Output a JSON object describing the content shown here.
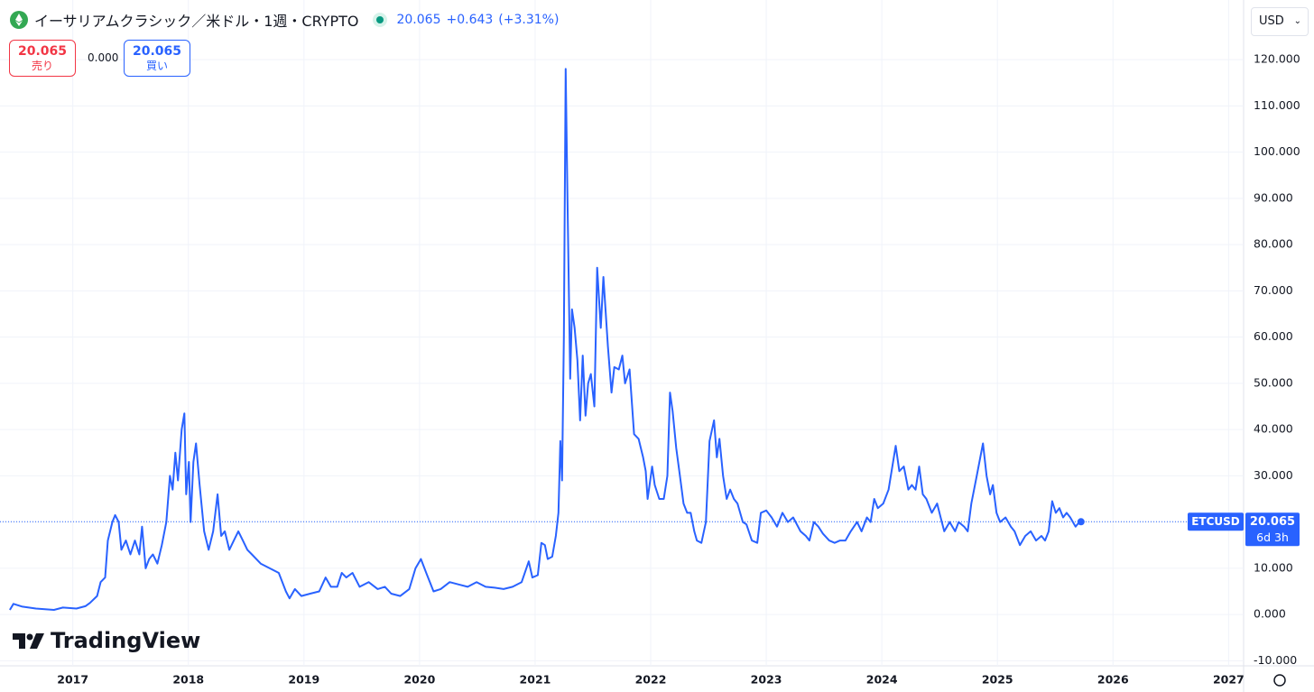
{
  "header": {
    "title": "イーサリアムクラシック／米ドル・1週・CRYPTO",
    "price": "20.065",
    "change": "+0.643",
    "change_pct": "(+3.31%)",
    "sell": {
      "price": "20.065",
      "label": "売り"
    },
    "spread": "0.000",
    "buy": {
      "price": "20.065",
      "label": "買い"
    },
    "currency": "USD",
    "brand": "TradingView"
  },
  "chart_data": {
    "type": "line",
    "grid": true,
    "x": [
      2016.455,
      2016.486,
      2016.564,
      2016.681,
      2016.837,
      2016.914,
      2017.031,
      2017.109,
      2017.148,
      2017.21,
      2017.241,
      2017.28,
      2017.303,
      2017.342,
      2017.366,
      2017.397,
      2017.42,
      2017.459,
      2017.498,
      2017.537,
      2017.576,
      2017.599,
      2017.63,
      2017.661,
      2017.693,
      2017.732,
      2017.77,
      2017.809,
      2017.84,
      2017.864,
      2017.887,
      2017.91,
      2017.942,
      2017.965,
      2017.981,
      2018.004,
      2018.019,
      2018.043,
      2018.066,
      2018.097,
      2018.136,
      2018.175,
      2018.214,
      2018.253,
      2018.284,
      2018.315,
      2018.354,
      2018.393,
      2018.432,
      2018.471,
      2018.51,
      2018.549,
      2018.626,
      2018.704,
      2018.782,
      2018.844,
      2018.875,
      2018.922,
      2018.977,
      2019.054,
      2019.132,
      2019.187,
      2019.233,
      2019.288,
      2019.327,
      2019.366,
      2019.42,
      2019.482,
      2019.56,
      2019.638,
      2019.7,
      2019.755,
      2019.833,
      2019.911,
      2019.965,
      2020.012,
      2020.058,
      2020.121,
      2020.183,
      2020.261,
      2020.338,
      2020.416,
      2020.494,
      2020.572,
      2020.65,
      2020.727,
      2020.805,
      2020.883,
      2020.945,
      2020.976,
      2021.023,
      2021.054,
      2021.085,
      2021.109,
      2021.148,
      2021.179,
      2021.202,
      2021.218,
      2021.233,
      2021.249,
      2021.264,
      2021.28,
      2021.303,
      2021.319,
      2021.342,
      2021.366,
      2021.389,
      2021.412,
      2021.436,
      2021.459,
      2021.482,
      2021.513,
      2021.537,
      2021.568,
      2021.591,
      2021.63,
      2021.661,
      2021.685,
      2021.724,
      2021.755,
      2021.778,
      2021.817,
      2021.856,
      2021.895,
      2021.934,
      2021.957,
      2021.973,
      2022.012,
      2022.035,
      2022.074,
      2022.113,
      2022.144,
      2022.167,
      2022.19,
      2022.221,
      2022.253,
      2022.284,
      2022.315,
      2022.346,
      2022.377,
      2022.4,
      2022.439,
      2022.478,
      2022.509,
      2022.548,
      2022.572,
      2022.595,
      2022.626,
      2022.657,
      2022.688,
      2022.72,
      2022.751,
      2022.797,
      2022.828,
      2022.875,
      2022.922,
      2022.953,
      2023.0,
      2023.046,
      2023.093,
      2023.14,
      2023.187,
      2023.233,
      2023.296,
      2023.342,
      2023.373,
      2023.412,
      2023.451,
      2023.49,
      2023.544,
      2023.591,
      2023.638,
      2023.685,
      2023.731,
      2023.786,
      2023.825,
      2023.871,
      2023.903,
      2023.934,
      2023.965,
      2024.012,
      2024.058,
      2024.097,
      2024.12,
      2024.151,
      2024.19,
      2024.229,
      2024.26,
      2024.292,
      2024.323,
      2024.354,
      2024.385,
      2024.432,
      2024.478,
      2024.509,
      2024.54,
      2024.587,
      2024.634,
      2024.665,
      2024.712,
      2024.743,
      2024.774,
      2024.821,
      2024.875,
      2024.906,
      2024.937,
      2024.961,
      2024.992,
      2025.023,
      2025.07,
      2025.116,
      2025.148,
      2025.194,
      2025.241,
      2025.288,
      2025.334,
      2025.381,
      2025.412,
      2025.443,
      2025.474,
      2025.505,
      2025.536,
      2025.568,
      2025.599,
      2025.63,
      2025.676,
      2025.708,
      2025.723
    ],
    "series": [
      {
        "name": "ETCUSD",
        "color": "#2962ff",
        "values": [
          1,
          2.3,
          1.7,
          1.3,
          1.0,
          1.5,
          1.3,
          1.8,
          2.5,
          4,
          7,
          8,
          16,
          20,
          21.5,
          20,
          14,
          16,
          13,
          16,
          13,
          19,
          10,
          12,
          13,
          11,
          15,
          20,
          30,
          27,
          35,
          29,
          40,
          43.5,
          26,
          33,
          20,
          33,
          37,
          28,
          18,
          14,
          18,
          26,
          17,
          18,
          14,
          16,
          18,
          16,
          14,
          13,
          11,
          10,
          9,
          5,
          3.5,
          5.5,
          4,
          4.5,
          5,
          8,
          6,
          6,
          9,
          8,
          9,
          6,
          7,
          5.5,
          6,
          4.5,
          4,
          5.5,
          10,
          12,
          9,
          5,
          5.5,
          7,
          6.5,
          6,
          7,
          6,
          5.8,
          5.5,
          6,
          7,
          11.5,
          8,
          8.5,
          15.5,
          15,
          12,
          12.5,
          17,
          22,
          37.5,
          29,
          60,
          118,
          90,
          51,
          66,
          62,
          55,
          42,
          56,
          43,
          50,
          52,
          45,
          75,
          62,
          73,
          58,
          48,
          53.5,
          53,
          56,
          50,
          53,
          39,
          38,
          34,
          31,
          25,
          32,
          28,
          25,
          25,
          30,
          48,
          44,
          36,
          30,
          24,
          22,
          22,
          18,
          16,
          15.5,
          20,
          37.5,
          42,
          34,
          38,
          30,
          25,
          27,
          25,
          24,
          20,
          19.5,
          16,
          15.5,
          22,
          22.5,
          21,
          19,
          22,
          20,
          21,
          18,
          17,
          16,
          20,
          19,
          17.5,
          16,
          15.5,
          16,
          16,
          18,
          20,
          18,
          21,
          20,
          25,
          23,
          24,
          27,
          33,
          36.5,
          31,
          32,
          27,
          28,
          27,
          32,
          26,
          25,
          22,
          24,
          21,
          18,
          20,
          18,
          20,
          19,
          18,
          24,
          30,
          37,
          30,
          26,
          28,
          22,
          20,
          21,
          19,
          18,
          15,
          17,
          18,
          16,
          17,
          16,
          18,
          24.5,
          22,
          23,
          21,
          22,
          21,
          19,
          20,
          20.065
        ]
      }
    ],
    "last_price": {
      "value": 20.065,
      "label": "20.065"
    },
    "countdown": "6d 3h",
    "xlim": [
      2016.37,
      2027.13
    ],
    "xticks": [
      2017,
      2018,
      2019,
      2020,
      2021,
      2022,
      2023,
      2024,
      2025,
      2026,
      2027
    ],
    "ylim": [
      -11.1,
      132.9
    ],
    "yticks": [
      {
        "value": -10,
        "label": "-10.000"
      },
      {
        "value": 0,
        "label": "0.000"
      },
      {
        "value": 10,
        "label": "10.000"
      },
      {
        "value": 20,
        "label": "20.000"
      },
      {
        "value": 30,
        "label": "30.000"
      },
      {
        "value": 40,
        "label": "40.000"
      },
      {
        "value": 50,
        "label": "50.000"
      },
      {
        "value": 60,
        "label": "60.000"
      },
      {
        "value": 70,
        "label": "70.000"
      },
      {
        "value": 80,
        "label": "80.000"
      },
      {
        "value": 90,
        "label": "90.000"
      },
      {
        "value": 100,
        "label": "100.000"
      },
      {
        "value": 110,
        "label": "110.000"
      },
      {
        "value": 120,
        "label": "120.000"
      }
    ]
  }
}
